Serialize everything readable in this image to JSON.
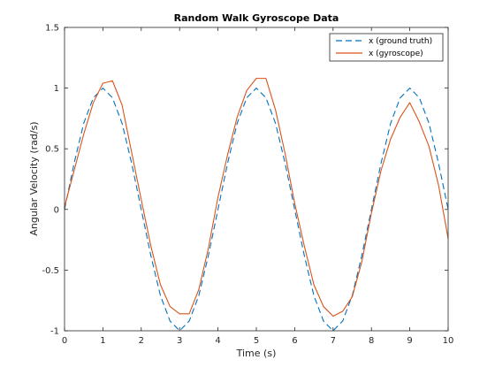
{
  "chart_data": {
    "type": "line",
    "title": "Random Walk Gyroscope Data",
    "xlabel": "Time (s)",
    "ylabel": "Angular Velocity (rad/s)",
    "xlim": [
      0,
      10
    ],
    "ylim": [
      -1,
      1.5
    ],
    "xticks": [
      0,
      1,
      2,
      3,
      4,
      5,
      6,
      7,
      8,
      9,
      10
    ],
    "yticks": [
      -1,
      -0.5,
      0,
      0.5,
      1,
      1.5
    ],
    "xtick_labels": [
      "0",
      "1",
      "2",
      "3",
      "4",
      "5",
      "6",
      "7",
      "8",
      "9",
      "10"
    ],
    "ytick_labels": [
      "-1",
      "-0.5",
      "0",
      "0.5",
      "1",
      "1.5"
    ],
    "grid": false,
    "legend_position": "top-right",
    "series": [
      {
        "name": "x (ground truth)",
        "color": "#0072BD",
        "style": "dashed",
        "x": [
          0,
          0.25,
          0.5,
          0.75,
          1,
          1.25,
          1.5,
          1.75,
          2,
          2.25,
          2.5,
          2.75,
          3,
          3.25,
          3.5,
          3.75,
          4,
          4.25,
          4.5,
          4.75,
          5,
          5.25,
          5.5,
          5.75,
          6,
          6.25,
          6.5,
          6.75,
          7,
          7.25,
          7.5,
          7.75,
          8,
          8.25,
          8.5,
          8.75,
          9,
          9.25,
          9.5,
          9.75,
          10
        ],
        "y": [
          0.0,
          0.38,
          0.71,
          0.92,
          1.0,
          0.92,
          0.71,
          0.38,
          0.0,
          -0.38,
          -0.71,
          -0.92,
          -1.0,
          -0.92,
          -0.71,
          -0.38,
          0.0,
          0.38,
          0.71,
          0.92,
          1.0,
          0.92,
          0.71,
          0.38,
          0.0,
          -0.38,
          -0.71,
          -0.92,
          -1.0,
          -0.92,
          -0.71,
          -0.38,
          0.0,
          0.38,
          0.71,
          0.92,
          1.0,
          0.92,
          0.71,
          0.38,
          0.0
        ]
      },
      {
        "name": "x (gyroscope)",
        "color": "#D95319",
        "style": "solid",
        "x": [
          0,
          0.25,
          0.5,
          0.75,
          1,
          1.25,
          1.5,
          1.75,
          2,
          2.25,
          2.5,
          2.75,
          3,
          3.25,
          3.5,
          3.75,
          4,
          4.25,
          4.5,
          4.75,
          5,
          5.25,
          5.5,
          5.75,
          6,
          6.25,
          6.5,
          6.75,
          7,
          7.25,
          7.5,
          7.75,
          8,
          8.25,
          8.5,
          8.75,
          9,
          9.25,
          9.5,
          9.75,
          10
        ],
        "y": [
          0.02,
          0.32,
          0.62,
          0.88,
          1.04,
          1.06,
          0.86,
          0.47,
          0.08,
          -0.3,
          -0.62,
          -0.8,
          -0.86,
          -0.86,
          -0.66,
          -0.32,
          0.1,
          0.45,
          0.76,
          0.98,
          1.08,
          1.08,
          0.82,
          0.46,
          0.05,
          -0.3,
          -0.62,
          -0.8,
          -0.88,
          -0.84,
          -0.72,
          -0.43,
          -0.03,
          0.32,
          0.58,
          0.76,
          0.88,
          0.72,
          0.52,
          0.2,
          -0.24
        ]
      }
    ]
  }
}
